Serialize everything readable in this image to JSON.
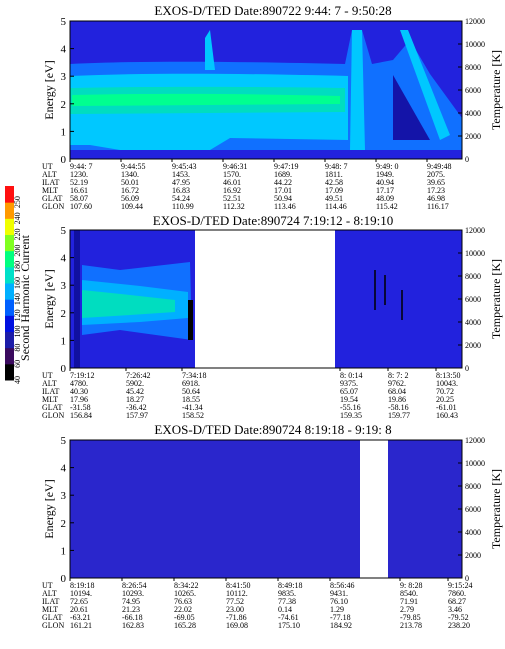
{
  "chart_data": [
    {
      "type": "heatmap",
      "title": "EXOS-D/TED   Date:890722  9:44: 7 - 9:50:28",
      "ylabel": "Energy [eV]",
      "y2label": "Temperature [K]",
      "ylim": [
        0,
        5
      ],
      "y2lim": [
        0,
        12000
      ],
      "yticks": [
        "0",
        "1",
        "2",
        "3",
        "4",
        "5"
      ],
      "y2ticks": [
        "0",
        "2000",
        "4000",
        "6000",
        "8000",
        "10000",
        "12000"
      ],
      "row_labels": [
        "UT",
        "ALT",
        "ILAT",
        "MLT",
        "GLAT",
        "GLON"
      ],
      "columns": [
        [
          "9:44: 7",
          "1230.",
          "52.19",
          "16.61",
          "58.07",
          "107.60"
        ],
        [
          "9:44:55",
          "1340.",
          "50.01",
          "16.72",
          "56.09",
          "109.44"
        ],
        [
          "9:45:43",
          "1453.",
          "47.95",
          "16.83",
          "54.24",
          "110.99"
        ],
        [
          "9:46:31",
          "1570.",
          "46.01",
          "16.92",
          "52.51",
          "112.32"
        ],
        [
          "9:47:19",
          "1689.",
          "44.22",
          "17.01",
          "50.94",
          "113.46"
        ],
        [
          "9:48: 7",
          "1811.",
          "42.58",
          "17.09",
          "49.51",
          "114.46"
        ],
        [
          "9:49: 0",
          "1949.",
          "40.94",
          "17.17",
          "48.09",
          "115.42"
        ],
        [
          "9:49:48",
          "2075.",
          "39.65",
          "17.23",
          "46.98",
          "116.17"
        ]
      ]
    },
    {
      "type": "heatmap",
      "title": "EXOS-D/TED   Date:890724  7:19:12 - 8:19:10",
      "ylabel": "Energy [eV]",
      "y2label": "Temperature [K]",
      "ylim": [
        0,
        5
      ],
      "y2lim": [
        0,
        12000
      ],
      "yticks": [
        "0",
        "1",
        "2",
        "3",
        "4",
        "5"
      ],
      "y2ticks": [
        "0",
        "2000",
        "4000",
        "6000",
        "8000",
        "10000",
        "12000"
      ],
      "row_labels": [
        "UT",
        "ALT",
        "ILAT",
        "MLT",
        "GLAT",
        "GLON"
      ],
      "columns": [
        [
          "7:19:12",
          "4780.",
          "40.30",
          "17.96",
          "-31.58",
          "156.84"
        ],
        [
          "7:26:42",
          "5902.",
          "45.42",
          "18.27",
          "-36.42",
          "157.97"
        ],
        [
          "7:34:18",
          "6918.",
          "50.64",
          "18.55",
          "-41.34",
          "158.52"
        ],
        [
          "8: 0:14",
          "9375.",
          "65.07",
          "19.54",
          "-55.16",
          "159.35"
        ],
        [
          "8: 7: 2",
          "9762.",
          "68.04",
          "19.86",
          "-58.16",
          "159.77"
        ],
        [
          "8:13:50",
          "10043.",
          "70.72",
          "20.25",
          "-61.01",
          "160.43"
        ]
      ]
    },
    {
      "type": "heatmap",
      "title": "EXOS-D/TED   Date:890724  8:19:18 - 9:19: 8",
      "ylabel": "Energy [eV]",
      "y2label": "Temperature [K]",
      "ylim": [
        0,
        5
      ],
      "y2lim": [
        0,
        12000
      ],
      "yticks": [
        "0",
        "1",
        "2",
        "3",
        "4",
        "5"
      ],
      "y2ticks": [
        "0",
        "2000",
        "4000",
        "6000",
        "8000",
        "10000",
        "12000"
      ],
      "row_labels": [
        "UT",
        "ALT",
        "ILAT",
        "MLT",
        "GLAT",
        "GLON"
      ],
      "columns": [
        [
          "8:19:18",
          "10194.",
          "72.65",
          "20.61",
          "-63.21",
          "161.21"
        ],
        [
          "8:26:54",
          "10293.",
          "74.95",
          "21.23",
          "-66.18",
          "162.83"
        ],
        [
          "8:34:22",
          "10265.",
          "76.63",
          "22.02",
          "-69.05",
          "165.28"
        ],
        [
          "8:41:50",
          "10112.",
          "77.52",
          "23.00",
          "-71.86",
          "169.08"
        ],
        [
          "8:49:18",
          "9835.",
          "77.38",
          "0.14",
          "-74.61",
          "175.10"
        ],
        [
          "8:56:46",
          "9431.",
          "76.10",
          "1.29",
          "-77.18",
          "184.92"
        ],
        [
          "9: 8:28",
          "8540.",
          "71.91",
          "2.79",
          "-79.85",
          "213.78"
        ],
        [
          "9:15:24",
          "7860.",
          "68.27",
          "3.46",
          "-79.52",
          "238.20"
        ]
      ]
    }
  ],
  "colorbar": {
    "label": "Second Harmonic Current",
    "ticks": [
      "40",
      "60",
      "80",
      "100",
      "120",
      "140",
      "160",
      "180",
      "200",
      "220",
      "240",
      "250"
    ],
    "colors": [
      "#000000",
      "#3a0a5e",
      "#1c1ca8",
      "#0010e0",
      "#0060ff",
      "#00b0ff",
      "#00e0c8",
      "#00ff80",
      "#80ff20",
      "#f0ff00",
      "#ff9a00",
      "#ff1010"
    ]
  },
  "colors": {
    "background": "#2222dd",
    "blue": "#1070ff",
    "cyan": "#00c8ff",
    "teal": "#00ddc0",
    "green": "#00ff90",
    "dark_blue": "#1010a0",
    "gap": "#ffffff"
  }
}
